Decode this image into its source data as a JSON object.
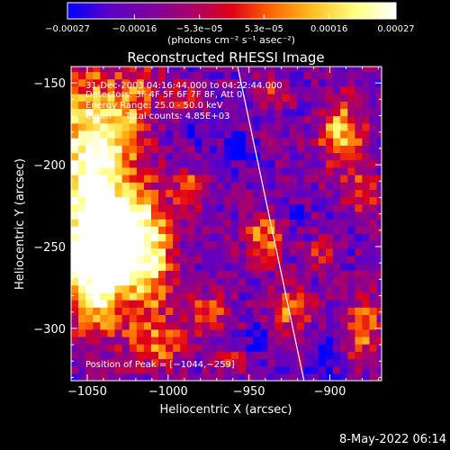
{
  "chart_data": {
    "type": "heatmap",
    "title": "Reconstructed RHESSI Image",
    "xlabel": "Heliocentric X (arcsec)",
    "ylabel": "Heliocentric Y (arcsec)",
    "xlim": [
      -1060,
      -868
    ],
    "ylim": [
      -332,
      -140
    ],
    "xticks": [
      {
        "value": -1050,
        "label": "−1050"
      },
      {
        "value": -1000,
        "label": "−1000"
      },
      {
        "value": -950,
        "label": "−950"
      },
      {
        "value": -900,
        "label": "−900"
      }
    ],
    "yticks": [
      {
        "value": -150,
        "label": "−150"
      },
      {
        "value": -200,
        "label": "−200"
      },
      {
        "value": -250,
        "label": "−250"
      },
      {
        "value": -300,
        "label": "−300"
      }
    ],
    "colorbar": {
      "range": [
        -0.00027,
        0.00027
      ],
      "ticks": [
        {
          "value": -0.00027,
          "label": "−0.00027"
        },
        {
          "value": -0.00016,
          "label": "−0.00016"
        },
        {
          "value": -5.3e-05,
          "label": "−5.3e−05"
        },
        {
          "value": 5.3e-05,
          "label": "5.3e−05"
        },
        {
          "value": 0.00016,
          "label": "0.00016"
        },
        {
          "value": 0.00027,
          "label": "0.00027"
        }
      ],
      "label": "(photons cm⁻² s⁻¹ asec⁻²)",
      "colors": [
        "#0000ff",
        "#5a00c8",
        "#7d00a0",
        "#a8006c",
        "#e00018",
        "#ff6a00",
        "#ffc020",
        "#ffff80",
        "#ffffff"
      ]
    },
    "annotations": {
      "time_range": "31-Dec-2003 04:16:44.000 to 04:22:44.000",
      "detectors": "Detectors: 3F 4F 5F 6F 7F 8F, Att 0",
      "energy": "Energy Range: 25.0 - 50.0 keV",
      "method": "Clean     Total counts: 4.85E+03",
      "peak": "Position of Peak = [−1044,−259]"
    },
    "limb_line": {
      "x": [
        -957,
        -916
      ],
      "y": [
        -140,
        -332
      ],
      "color": "#ffffff"
    }
  },
  "footer": {
    "timestamp": "8-May-2022 06:14"
  }
}
